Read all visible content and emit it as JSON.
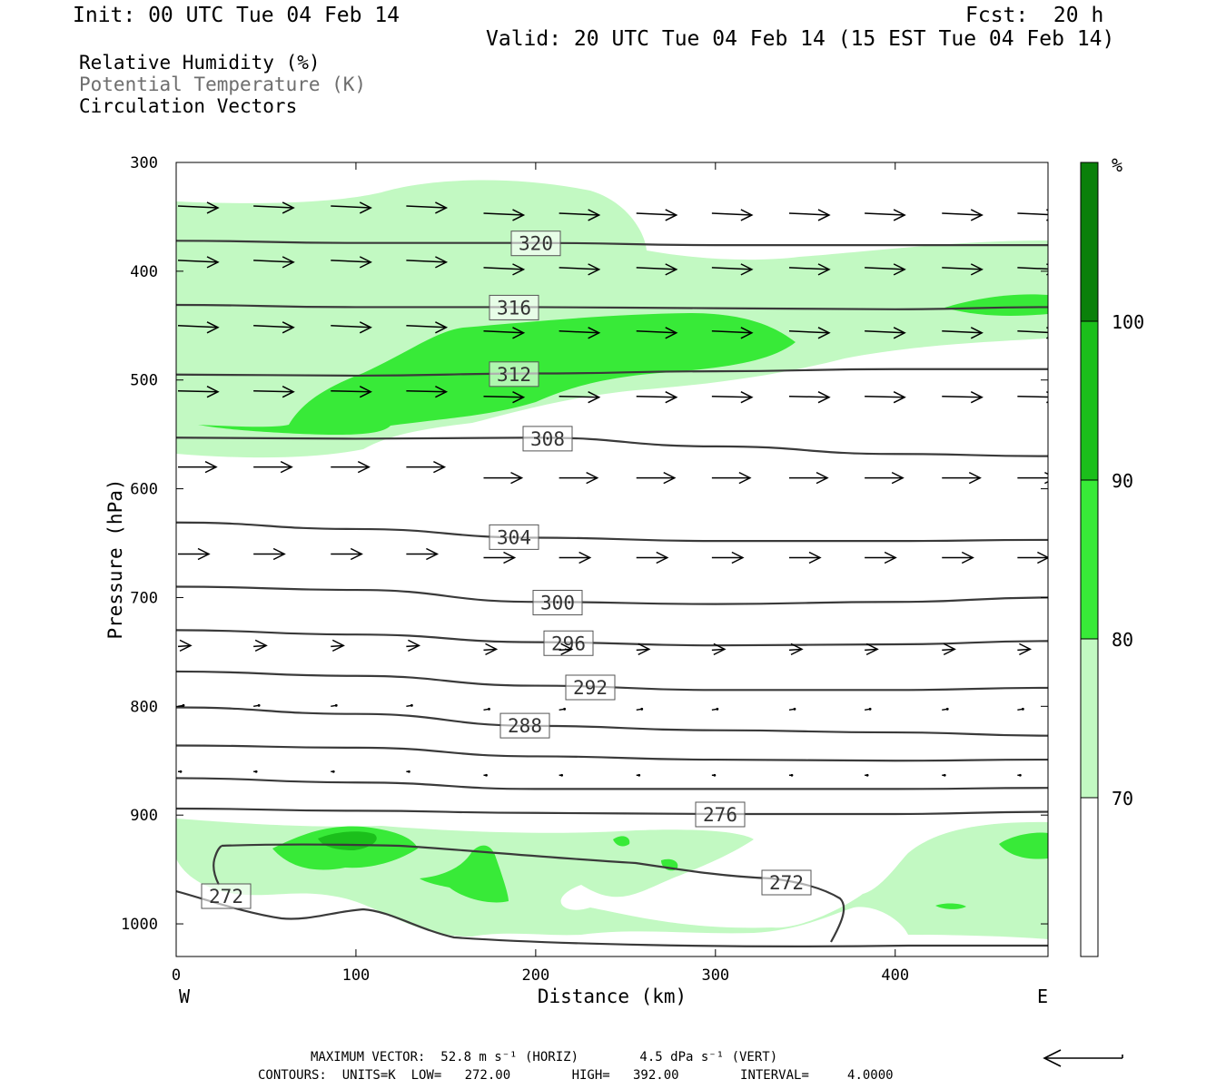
{
  "header": {
    "init": "Init: 00 UTC Tue 04 Feb 14",
    "fcst": "Fcst:  20 h",
    "valid": "Valid: 20 UTC Tue 04 Feb 14 (15 EST Tue 04 Feb 14)"
  },
  "legend_lines": {
    "rh": "Relative Humidity (%)",
    "theta": "Potential Temperature (K)",
    "vectors": "Circulation Vectors"
  },
  "footer": {
    "max_vector": "MAXIMUM VECTOR:  52.8 m s⁻¹ (HORIZ)        4.5 dPa s⁻¹ (VERT)",
    "contours": "CONTOURS:  UNITS=K  LOW=   272.00        HIGH=   392.00        INTERVAL=     4.0000"
  },
  "colors": {
    "rh_70_80": "#c2f9c2",
    "rh_80_90": "#38ea38",
    "rh_90_100": "#1bbf1b",
    "rh_100": "#0a800a",
    "contour": "#3a3a3a",
    "arrow": "#000000"
  },
  "chart_data": {
    "type": "cross-section",
    "xlabel": "Distance (km)",
    "ylabel": "Pressure (hPa)",
    "xlim": [
      0,
      485
    ],
    "ylim": [
      1030,
      300
    ],
    "y_scale": "linear (pressure, inverted)",
    "x_ticks": [
      "0",
      "100",
      "200",
      "300",
      "400"
    ],
    "x_tick_values": [
      0,
      100,
      200,
      300,
      400
    ],
    "x_end_labels": {
      "left": "W",
      "right": "E"
    },
    "y_ticks": [
      "300",
      "400",
      "500",
      "600",
      "700",
      "800",
      "900",
      "1000"
    ],
    "y_tick_values": [
      300,
      400,
      500,
      600,
      700,
      800,
      900,
      1000
    ],
    "colorbar": {
      "unit": "%",
      "labels": [
        "100",
        "90",
        "80",
        "70"
      ],
      "levels": [
        100,
        90,
        80,
        70
      ]
    },
    "theta_contours": [
      {
        "label": "320",
        "level": 320,
        "x": [
          0,
          100,
          200,
          300,
          400,
          485
        ],
        "p": [
          372,
          374,
          374,
          376,
          376,
          376
        ]
      },
      {
        "label": "316",
        "level": 316,
        "x": [
          0,
          100,
          200,
          300,
          400,
          485
        ],
        "p": [
          431,
          433,
          433,
          434,
          435,
          433
        ]
      },
      {
        "label": "312",
        "level": 312,
        "x": [
          0,
          100,
          200,
          300,
          400,
          485
        ],
        "p": [
          495,
          496,
          494,
          492,
          490,
          490
        ]
      },
      {
        "label": "308",
        "level": 308,
        "x": [
          0,
          100,
          200,
          300,
          400,
          485
        ],
        "p": [
          553,
          554,
          553,
          561,
          568,
          570
        ]
      },
      {
        "label": "304",
        "level": 304,
        "x": [
          0,
          100,
          200,
          300,
          400,
          485
        ],
        "p": [
          631,
          637,
          645,
          648,
          648,
          647
        ]
      },
      {
        "label": "300",
        "level": 300,
        "x": [
          0,
          100,
          200,
          300,
          400,
          485
        ],
        "p": [
          690,
          693,
          704,
          706,
          704,
          700
        ]
      },
      {
        "label": "296",
        "level": 296,
        "x": [
          0,
          100,
          200,
          300,
          400,
          485
        ],
        "p": [
          730,
          734,
          741,
          744,
          743,
          740
        ]
      },
      {
        "label": "292",
        "level": 292,
        "x": [
          0,
          100,
          200,
          300,
          400,
          485
        ],
        "p": [
          768,
          772,
          781,
          785,
          785,
          783
        ]
      },
      {
        "label": "288",
        "level": 288,
        "x": [
          0,
          100,
          200,
          300,
          400,
          485
        ],
        "p": [
          801,
          807,
          818,
          822,
          824,
          827
        ]
      },
      {
        "label": "",
        "level": 284,
        "x": [
          0,
          100,
          200,
          300,
          400,
          485
        ],
        "p": [
          836,
          838,
          846,
          849,
          850,
          849
        ]
      },
      {
        "label": "",
        "level": 280,
        "x": [
          0,
          100,
          200,
          300,
          400,
          485
        ],
        "p": [
          866,
          870,
          876,
          876,
          876,
          875
        ]
      },
      {
        "label": "276",
        "level": 276,
        "x": [
          0,
          100,
          200,
          300,
          400,
          485
        ],
        "p": [
          894,
          896,
          898,
          899,
          899,
          897
        ]
      }
    ],
    "contour_labels_shown": [
      "320",
      "316",
      "312",
      "308",
      "304",
      "300",
      "296",
      "292",
      "288",
      "276",
      "272",
      "272"
    ],
    "vector_rows_hpa": [
      340,
      390,
      450,
      510,
      580,
      660,
      745,
      800,
      860
    ],
    "max_vector_horiz_m_s": 52.8,
    "max_vector_vert_dpa_s": 4.5,
    "contour_low": 272.0,
    "contour_high": 392.0,
    "contour_interval": 4.0
  }
}
